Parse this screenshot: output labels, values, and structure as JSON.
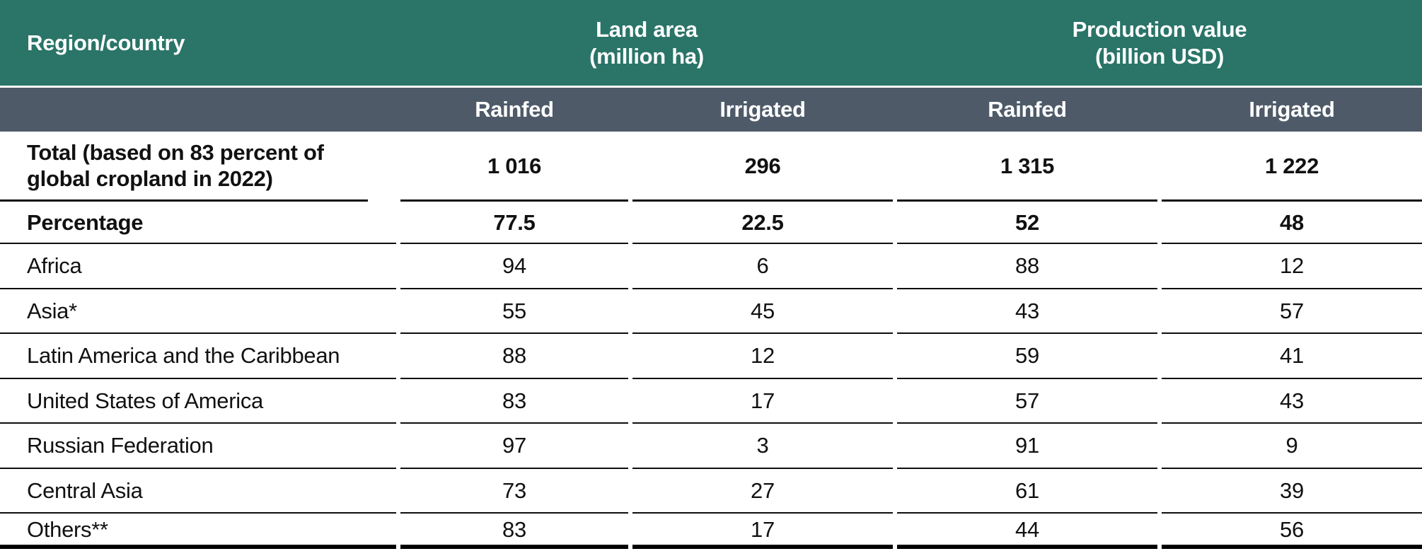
{
  "chart_data": {
    "type": "table",
    "header": {
      "region_label": "Region/country",
      "groups": [
        {
          "title": "Land area",
          "subtitle": "(million ha)"
        },
        {
          "title": "Production value",
          "subtitle": "(billion USD)"
        }
      ],
      "sub_columns": [
        "Rainfed",
        "Irrigated",
        "Rainfed",
        "Irrigated"
      ]
    },
    "rows": [
      {
        "label": "Total (based on 83 percent of global cropland in 2022)",
        "values": [
          "1 016",
          "296",
          "1 315",
          "1 222"
        ],
        "bold": true
      },
      {
        "label": "Percentage",
        "values": [
          "77.5",
          "22.5",
          "52",
          "48"
        ],
        "bold": true
      },
      {
        "label": "Africa",
        "values": [
          "94",
          "6",
          "88",
          "12"
        ],
        "bold": false
      },
      {
        "label": "Asia*",
        "values": [
          "55",
          "45",
          "43",
          "57"
        ],
        "bold": false
      },
      {
        "label": "Latin America and the Caribbean",
        "values": [
          "88",
          "12",
          "59",
          "41"
        ],
        "bold": false
      },
      {
        "label": "United States of America",
        "values": [
          "83",
          "17",
          "57",
          "43"
        ],
        "bold": false
      },
      {
        "label": "Russian Federation",
        "values": [
          "97",
          "3",
          "91",
          "9"
        ],
        "bold": false
      },
      {
        "label": "Central Asia",
        "values": [
          "73",
          "27",
          "61",
          "39"
        ],
        "bold": false
      },
      {
        "label": "Others**",
        "values": [
          "83",
          "17",
          "44",
          "56"
        ],
        "bold": false
      }
    ],
    "colors": {
      "header_teal": "#2A7468",
      "header_slate": "#4E5A68",
      "rule_black": "#0D0D0D",
      "text_white": "#FFFFFF",
      "text_dark": "#111111"
    },
    "layout_hints": {
      "grid": "horizontal rules only, small gaps at column boundaries",
      "legend": "none"
    }
  }
}
